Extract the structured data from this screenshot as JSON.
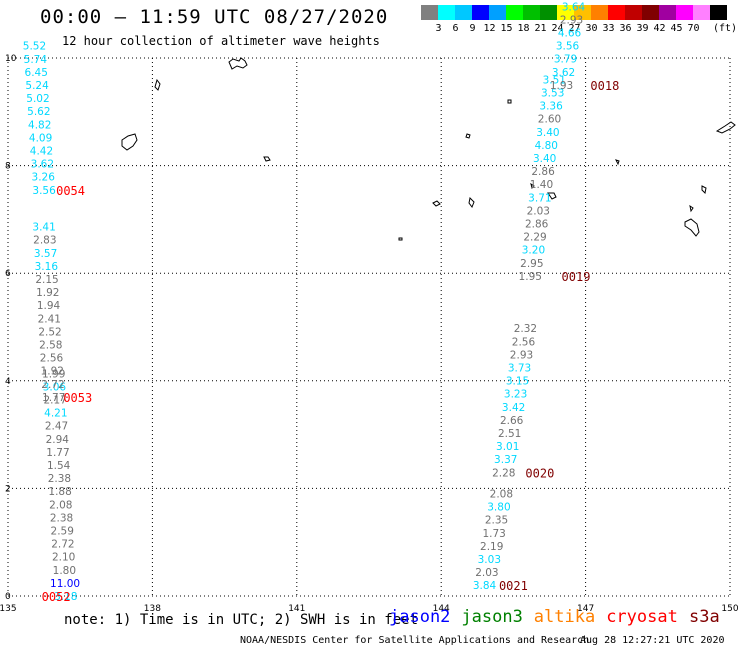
{
  "title": "00:00 – 11:59 UTC 08/27/2020",
  "subtitle": "12 hour collection of altimeter wave heights",
  "scale": {
    "unit": "(ft)",
    "bins": [
      {
        "label": "",
        "color": "#808080"
      },
      {
        "label": "3",
        "color": "#00ffff"
      },
      {
        "label": "6",
        "color": "#00c8ff"
      },
      {
        "label": "9",
        "color": "#0000ff"
      },
      {
        "label": "12",
        "color": "#00a0ff"
      },
      {
        "label": "15",
        "color": "#00ff00"
      },
      {
        "label": "18",
        "color": "#00c000"
      },
      {
        "label": "21",
        "color": "#009000"
      },
      {
        "label": "24",
        "color": "#ffff00"
      },
      {
        "label": "27",
        "color": "#ffc000"
      },
      {
        "label": "30",
        "color": "#ff8000"
      },
      {
        "label": "33",
        "color": "#ff0000"
      },
      {
        "label": "36",
        "color": "#c00000"
      },
      {
        "label": "39",
        "color": "#800000"
      },
      {
        "label": "42",
        "color": "#a000a0"
      },
      {
        "label": "45",
        "color": "#ff00ff"
      },
      {
        "label": "70",
        "color": "#ff80ff"
      },
      {
        "label": "",
        "color": "#000000"
      }
    ]
  },
  "axes": {
    "x_ticks": [
      "135",
      "138",
      "141",
      "144",
      "147",
      "150"
    ],
    "y_ticks": [
      "0",
      "2",
      "4",
      "6",
      "8",
      "10"
    ]
  },
  "colors": {
    "gray": "#707070",
    "cyan": "#00d8ff",
    "blue": "#0000ff",
    "red_cryosat": "#ff0000",
    "maroon_s3a": "#800000"
  },
  "tracks": [
    {
      "time": "0052",
      "time_color": "red_cryosat",
      "time_lon": 136.0,
      "time_lat": 0.0,
      "lon_start": 136.2,
      "lon_end": 135.95,
      "values": [
        {
          "v": "3.18",
          "c": "cyan"
        },
        {
          "v": "11.00",
          "c": "blue"
        },
        {
          "v": "1.80",
          "c": "gray"
        },
        {
          "v": "2.10",
          "c": "gray"
        },
        {
          "v": "2.72",
          "c": "gray"
        },
        {
          "v": "2.59",
          "c": "gray"
        },
        {
          "v": "2.38",
          "c": "gray"
        },
        {
          "v": "2.08",
          "c": "gray"
        },
        {
          "v": "1.88",
          "c": "gray"
        },
        {
          "v": "2.38",
          "c": "gray"
        },
        {
          "v": "1.54",
          "c": "gray"
        },
        {
          "v": "1.77",
          "c": "gray"
        },
        {
          "v": "2.94",
          "c": "gray"
        },
        {
          "v": "2.47",
          "c": "gray"
        },
        {
          "v": "4.21",
          "c": "cyan"
        },
        {
          "v": "2.17",
          "c": "gray"
        },
        {
          "v": "3.06",
          "c": "cyan"
        },
        {
          "v": "1.99",
          "c": "gray"
        }
      ]
    },
    {
      "time": "0053",
      "time_color": "red_cryosat",
      "time_lon": 136.45,
      "time_lat": 3.7,
      "lon_start": 135.95,
      "lon_end": 135.75,
      "values": [
        {
          "v": "1.77",
          "c": "gray"
        },
        {
          "v": "2.72",
          "c": "gray"
        },
        {
          "v": "1.92",
          "c": "gray"
        },
        {
          "v": "2.56",
          "c": "gray"
        },
        {
          "v": "2.58",
          "c": "gray"
        },
        {
          "v": "2.52",
          "c": "gray"
        },
        {
          "v": "2.41",
          "c": "gray"
        },
        {
          "v": "1.94",
          "c": "gray"
        },
        {
          "v": "1.92",
          "c": "gray"
        },
        {
          "v": "2.15",
          "c": "gray"
        },
        {
          "v": "3.16",
          "c": "cyan"
        },
        {
          "v": "3.57",
          "c": "cyan"
        },
        {
          "v": "2.83",
          "c": "gray"
        },
        {
          "v": "3.41",
          "c": "cyan"
        }
      ]
    },
    {
      "time": "0054",
      "time_color": "red_cryosat",
      "time_lon": 136.3,
      "time_lat": 7.55,
      "lon_start": 135.75,
      "lon_end": 135.55,
      "values": [
        {
          "v": "3.56",
          "c": "cyan"
        },
        {
          "v": "3.26",
          "c": "cyan"
        },
        {
          "v": "3.62",
          "c": "cyan"
        },
        {
          "v": "4.42",
          "c": "cyan"
        },
        {
          "v": "4.09",
          "c": "cyan"
        },
        {
          "v": "4.82",
          "c": "cyan"
        },
        {
          "v": "5.62",
          "c": "cyan"
        },
        {
          "v": "5.02",
          "c": "cyan"
        },
        {
          "v": "5.24",
          "c": "cyan"
        },
        {
          "v": "6.45",
          "c": "cyan"
        },
        {
          "v": "5.74",
          "c": "cyan"
        },
        {
          "v": "5.52",
          "c": "cyan"
        }
      ]
    },
    {
      "time": "0021",
      "time_color": "maroon_s3a",
      "time_lon": 145.5,
      "time_lat": 0.2,
      "lon_start": 144.9,
      "lon_end": 145.25,
      "values": [
        {
          "v": "3.84",
          "c": "cyan"
        },
        {
          "v": "2.03",
          "c": "gray"
        },
        {
          "v": "3.03",
          "c": "cyan"
        },
        {
          "v": "2.19",
          "c": "gray"
        },
        {
          "v": "1.73",
          "c": "gray"
        },
        {
          "v": "2.35",
          "c": "gray"
        },
        {
          "v": "3.80",
          "c": "cyan"
        },
        {
          "v": "2.08",
          "c": "gray"
        }
      ]
    },
    {
      "time": "0020",
      "time_color": "maroon_s3a",
      "time_lon": 146.05,
      "time_lat": 2.3,
      "lon_start": 145.3,
      "lon_end": 145.75,
      "values": [
        {
          "v": "2.28",
          "c": "gray"
        },
        {
          "v": "3.37",
          "c": "cyan"
        },
        {
          "v": "3.01",
          "c": "cyan"
        },
        {
          "v": "2.51",
          "c": "gray"
        },
        {
          "v": "2.66",
          "c": "gray"
        },
        {
          "v": "3.42",
          "c": "cyan"
        },
        {
          "v": "3.23",
          "c": "cyan"
        },
        {
          "v": "3.15",
          "c": "cyan"
        },
        {
          "v": "3.73",
          "c": "cyan"
        },
        {
          "v": "2.93",
          "c": "gray"
        },
        {
          "v": "2.56",
          "c": "gray"
        },
        {
          "v": "2.32",
          "c": "gray"
        }
      ]
    },
    {
      "time": "0019",
      "time_color": "maroon_s3a",
      "time_lon": 146.8,
      "time_lat": 5.95,
      "lon_start": 145.85,
      "lon_end": 146.35,
      "values": [
        {
          "v": "1.95",
          "c": "gray"
        },
        {
          "v": "2.95",
          "c": "gray"
        },
        {
          "v": "3.20",
          "c": "cyan"
        },
        {
          "v": "2.29",
          "c": "gray"
        },
        {
          "v": "2.86",
          "c": "gray"
        },
        {
          "v": "2.03",
          "c": "gray"
        },
        {
          "v": "3.71",
          "c": "cyan"
        },
        {
          "v": "1.40",
          "c": "gray"
        },
        {
          "v": "2.86",
          "c": "gray"
        },
        {
          "v": "3.40",
          "c": "cyan"
        },
        {
          "v": "4.80",
          "c": "cyan"
        },
        {
          "v": "3.40",
          "c": "cyan"
        },
        {
          "v": "2.60",
          "c": "gray"
        },
        {
          "v": "3.36",
          "c": "cyan"
        },
        {
          "v": "3.53",
          "c": "cyan"
        },
        {
          "v": "3.51",
          "c": "cyan"
        }
      ]
    },
    {
      "time": "0018",
      "time_color": "maroon_s3a",
      "time_lon": 147.4,
      "time_lat": 9.5,
      "lon_start": 146.5,
      "lon_end": 146.75,
      "values": [
        {
          "v": "1.93",
          "c": "gray"
        },
        {
          "v": "3.62",
          "c": "cyan"
        },
        {
          "v": "3.79",
          "c": "cyan"
        },
        {
          "v": "3.56",
          "c": "cyan"
        },
        {
          "v": "4.66",
          "c": "cyan"
        },
        {
          "v": "2.93",
          "c": "gray"
        },
        {
          "v": "3.64",
          "c": "cyan"
        }
      ]
    }
  ],
  "note": "note: 1) Time is in UTC; 2) SWH is in feet",
  "satellites": [
    {
      "name": "jason2",
      "color": "#0000ff"
    },
    {
      "name": "jason3",
      "color": "#008000"
    },
    {
      "name": "altika",
      "color": "#ff8000"
    },
    {
      "name": "cryosat",
      "color": "#ff0000"
    },
    {
      "name": "s3a",
      "color": "#800000"
    }
  ],
  "credit": "NOAA/NESDIS Center for Satellite Applications and Research",
  "timestamp": "Aug 28 12:27:21 UTC 2020"
}
